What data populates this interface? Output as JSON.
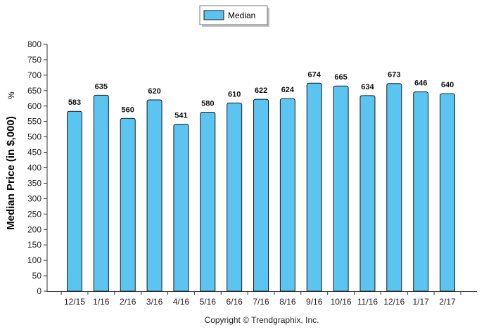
{
  "chart_data": {
    "type": "bar",
    "categories": [
      "12/15",
      "1/16",
      "2/16",
      "3/16",
      "4/16",
      "5/16",
      "6/16",
      "7/16",
      "8/16",
      "9/16",
      "10/16",
      "11/16",
      "12/16",
      "1/17",
      "2/17"
    ],
    "series": [
      {
        "name": "Median",
        "values": [
          583,
          635,
          560,
          620,
          541,
          580,
          610,
          622,
          624,
          674,
          665,
          634,
          673,
          646,
          640
        ]
      }
    ],
    "data_labels": [
      "583",
      "635",
      "560",
      "620",
      "541",
      "580",
      "610",
      "622",
      "624",
      "674",
      "665",
      "634",
      "673",
      "646",
      "640"
    ],
    "ylabel": "Median Price (in $,000)",
    "ylabel_suffix": "%",
    "ylim": [
      0,
      800
    ],
    "yticks": [
      0,
      50,
      100,
      150,
      200,
      250,
      300,
      350,
      400,
      450,
      500,
      550,
      600,
      650,
      700,
      750,
      800
    ],
    "legend": {
      "label": "Median",
      "placement": "top-center"
    },
    "grid": false,
    "bar_color": "#5BC4F1",
    "bar_stroke": "#1A1A1A"
  },
  "copyright": "Copyright © Trendgraphix, Inc."
}
